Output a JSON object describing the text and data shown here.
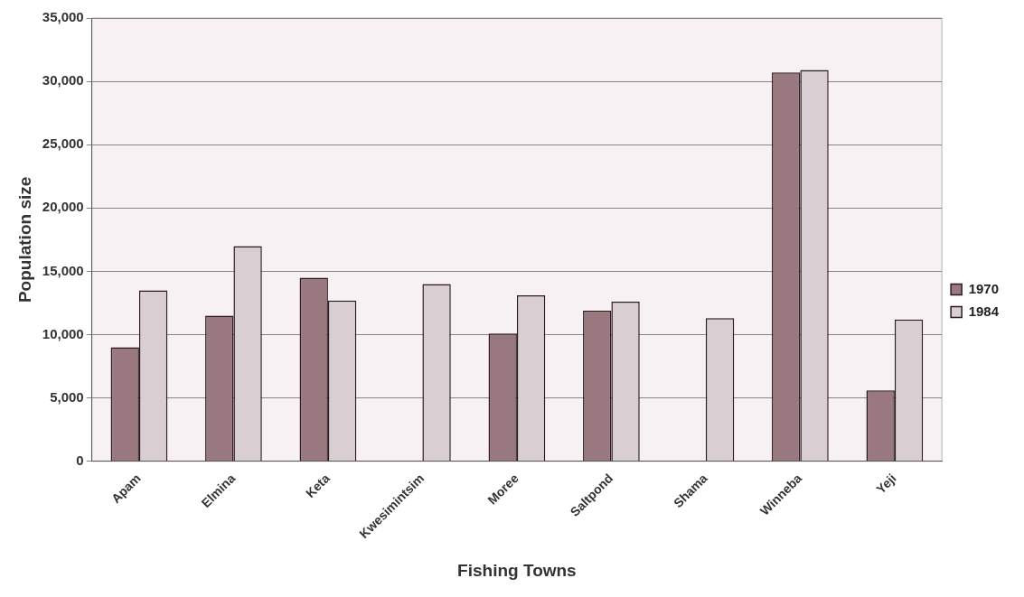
{
  "chart_data": {
    "type": "bar",
    "xlabel": "Fishing Towns",
    "ylabel": "Population size",
    "categories": [
      "Apam",
      "Elmina",
      "Keta",
      "Kwesimintsim",
      "Moree",
      "Saltpond",
      "Shama",
      "Winneba",
      "Yeji"
    ],
    "series": [
      {
        "name": "1970",
        "color": "#9a7880",
        "values": [
          9000,
          11500,
          14500,
          null,
          10100,
          11900,
          null,
          30700,
          5600
        ]
      },
      {
        "name": "1984",
        "color": "#d9cfd2",
        "values": [
          13500,
          17000,
          12700,
          14000,
          13100,
          12600,
          11300,
          30900,
          11200
        ]
      }
    ],
    "ylim": [
      0,
      35000
    ],
    "yticks": [
      {
        "value": 0,
        "label": "0"
      },
      {
        "value": 5000,
        "label": "5,000"
      },
      {
        "value": 10000,
        "label": "10,000"
      },
      {
        "value": 15000,
        "label": "15,000"
      },
      {
        "value": 20000,
        "label": "20,000"
      },
      {
        "value": 25000,
        "label": "25,000"
      },
      {
        "value": 30000,
        "label": "30,000"
      },
      {
        "value": 35000,
        "label": "35,000"
      }
    ],
    "grid": "y",
    "legend": "right"
  }
}
